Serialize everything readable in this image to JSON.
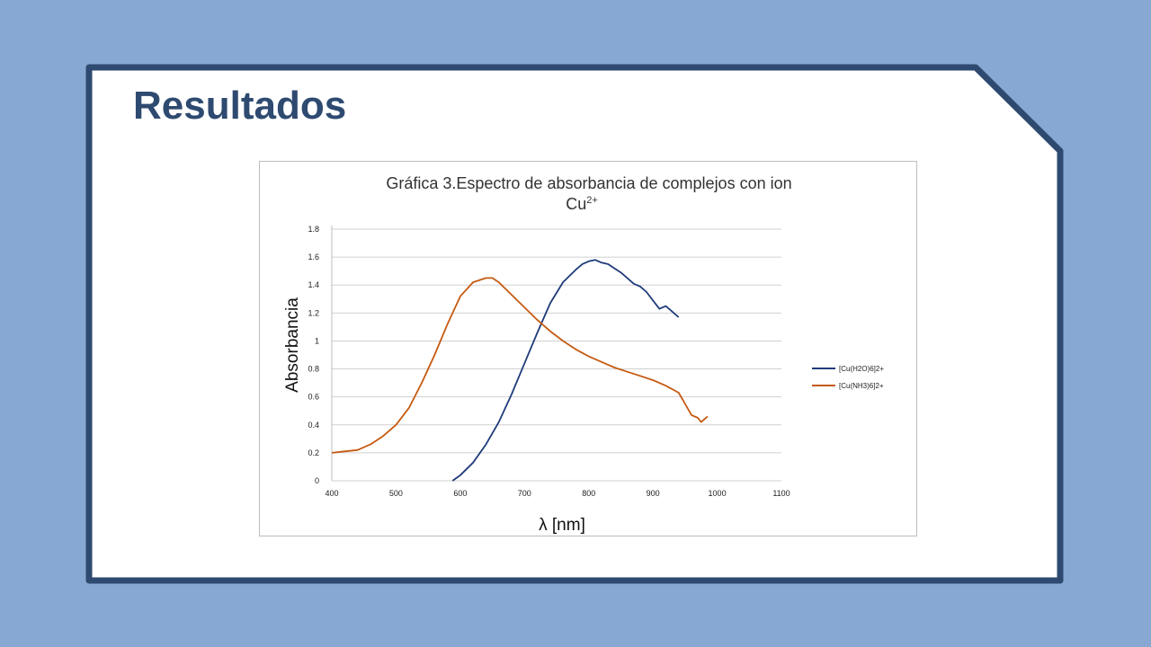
{
  "slide": {
    "title": "Resultados",
    "colors": {
      "background": "#88a8d4",
      "frame": "#2e4a70",
      "title": "#2e4a70"
    }
  },
  "chart_data": {
    "type": "line",
    "title": "Gráfica 3.Espectro de absorbancia de complejos con ion",
    "title_line2": "Cu",
    "title_line2_sup": "2+",
    "xlabel": "λ [nm]",
    "ylabel": "Absorbancia",
    "xlim": [
      400,
      1100
    ],
    "ylim": [
      0,
      1.8
    ],
    "xticks": [
      "400",
      "500",
      "600",
      "700",
      "800",
      "900",
      "1000",
      "1100"
    ],
    "yticks": [
      "0",
      "0.2",
      "0.4",
      "0.6",
      "0.8",
      "1",
      "1.2",
      "1.4",
      "1.6",
      "1.8"
    ],
    "grid": true,
    "legend_position": "right",
    "series": [
      {
        "name": "[Cu(H2O)6]2+",
        "color": "#1f3b7a",
        "x": [
          588,
          600,
          620,
          640,
          660,
          680,
          700,
          720,
          740,
          760,
          780,
          790,
          800,
          810,
          820,
          830,
          840,
          850,
          860,
          870,
          880,
          890,
          900,
          910,
          920,
          930,
          940
        ],
        "y": [
          0.0,
          0.04,
          0.13,
          0.26,
          0.42,
          0.62,
          0.84,
          1.06,
          1.27,
          1.42,
          1.51,
          1.55,
          1.57,
          1.58,
          1.56,
          1.55,
          1.52,
          1.49,
          1.45,
          1.41,
          1.39,
          1.35,
          1.29,
          1.23,
          1.25,
          1.21,
          1.17
        ]
      },
      {
        "name": "[Cu(NH3)6]2+",
        "color": "#c55a11",
        "x": [
          400,
          420,
          440,
          460,
          480,
          500,
          520,
          540,
          560,
          580,
          600,
          620,
          640,
          650,
          660,
          680,
          700,
          720,
          740,
          760,
          780,
          800,
          820,
          840,
          860,
          880,
          900,
          920,
          940,
          950,
          960,
          970,
          975,
          980,
          985
        ],
        "y": [
          0.2,
          0.21,
          0.22,
          0.26,
          0.32,
          0.4,
          0.52,
          0.7,
          0.9,
          1.12,
          1.32,
          1.42,
          1.45,
          1.45,
          1.42,
          1.33,
          1.24,
          1.15,
          1.07,
          1.0,
          0.94,
          0.89,
          0.85,
          0.81,
          0.78,
          0.75,
          0.72,
          0.68,
          0.63,
          0.55,
          0.47,
          0.45,
          0.42,
          0.44,
          0.46
        ]
      }
    ]
  }
}
